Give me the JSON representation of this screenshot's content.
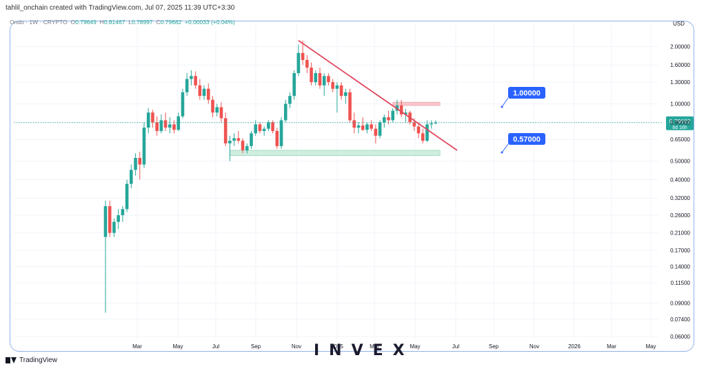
{
  "header": {
    "attribution": "tahlil_onchain created with TradingView.com, Jul 07, 2025 11:39 UTC+3:30"
  },
  "legend": {
    "symbol": "Ondo · 1W · CRYPTO",
    "open_label": "O",
    "open": "0.79649",
    "high_label": "H",
    "high": "0.81467",
    "low_label": "L",
    "low": "0.78997",
    "close_label": "C",
    "close": "0.79682",
    "change": "+0.00033 (+0.04%)"
  },
  "currency": "USD",
  "price_tag": {
    "price": "0.79682",
    "countdown": "6d 16h"
  },
  "annotations": {
    "resistance_label": "1.00000",
    "support_label": "0.57000"
  },
  "footer": {
    "brand": "TradingView"
  },
  "watermark": "INVEX",
  "colors": {
    "up": "#26a69a",
    "down": "#ef5350",
    "trendline": "#e0475d",
    "label_bg": "#2962ff",
    "support_zone": "#bfe8d6",
    "resistance_zone": "#f7c6cd"
  },
  "chart_data": {
    "type": "candlestick",
    "y_scale": "log",
    "ylim": [
      0.058,
      2.6
    ],
    "y_ticks": [
      "2.00000",
      "1.60000",
      "1.30000",
      "1.00000",
      "0.80000",
      "0.65000",
      "0.50000",
      "0.40000",
      "0.32000",
      "0.26000",
      "0.21000",
      "0.17000",
      "0.14000",
      "0.11500",
      "0.09000",
      "0.07400",
      "0.06000"
    ],
    "x_ticks": [
      "Mar",
      "May",
      "Jul",
      "Sep",
      "Nov",
      "2025",
      "Mar",
      "May",
      "Jul",
      "Sep",
      "Nov",
      "2026",
      "Mar",
      "May"
    ],
    "candles": [
      {
        "o": 0.2,
        "h": 0.31,
        "l": 0.08,
        "c": 0.29
      },
      {
        "o": 0.29,
        "h": 0.31,
        "l": 0.2,
        "c": 0.21
      },
      {
        "o": 0.21,
        "h": 0.25,
        "l": 0.2,
        "c": 0.24
      },
      {
        "o": 0.24,
        "h": 0.28,
        "l": 0.22,
        "c": 0.26
      },
      {
        "o": 0.26,
        "h": 0.29,
        "l": 0.24,
        "c": 0.28
      },
      {
        "o": 0.28,
        "h": 0.4,
        "l": 0.27,
        "c": 0.38
      },
      {
        "o": 0.38,
        "h": 0.48,
        "l": 0.36,
        "c": 0.45
      },
      {
        "o": 0.45,
        "h": 0.55,
        "l": 0.42,
        "c": 0.52
      },
      {
        "o": 0.52,
        "h": 0.56,
        "l": 0.4,
        "c": 0.48
      },
      {
        "o": 0.48,
        "h": 0.8,
        "l": 0.46,
        "c": 0.75
      },
      {
        "o": 0.75,
        "h": 0.95,
        "l": 0.7,
        "c": 0.9
      },
      {
        "o": 0.9,
        "h": 0.93,
        "l": 0.75,
        "c": 0.8
      },
      {
        "o": 0.8,
        "h": 0.86,
        "l": 0.68,
        "c": 0.72
      },
      {
        "o": 0.72,
        "h": 0.88,
        "l": 0.7,
        "c": 0.82
      },
      {
        "o": 0.82,
        "h": 0.9,
        "l": 0.72,
        "c": 0.75
      },
      {
        "o": 0.75,
        "h": 0.85,
        "l": 0.7,
        "c": 0.78
      },
      {
        "o": 0.78,
        "h": 0.82,
        "l": 0.7,
        "c": 0.73
      },
      {
        "o": 0.73,
        "h": 0.9,
        "l": 0.72,
        "c": 0.86
      },
      {
        "o": 0.86,
        "h": 1.2,
        "l": 0.84,
        "c": 1.15
      },
      {
        "o": 1.15,
        "h": 1.45,
        "l": 1.1,
        "c": 1.35
      },
      {
        "o": 1.35,
        "h": 1.5,
        "l": 1.25,
        "c": 1.4
      },
      {
        "o": 1.4,
        "h": 1.48,
        "l": 1.2,
        "c": 1.25
      },
      {
        "o": 1.25,
        "h": 1.35,
        "l": 1.05,
        "c": 1.1
      },
      {
        "o": 1.1,
        "h": 1.25,
        "l": 1.05,
        "c": 1.2
      },
      {
        "o": 1.2,
        "h": 1.28,
        "l": 1.0,
        "c": 1.05
      },
      {
        "o": 1.05,
        "h": 1.1,
        "l": 0.85,
        "c": 0.9
      },
      {
        "o": 0.9,
        "h": 1.0,
        "l": 0.86,
        "c": 0.96
      },
      {
        "o": 0.96,
        "h": 1.02,
        "l": 0.8,
        "c": 0.84
      },
      {
        "o": 0.84,
        "h": 0.9,
        "l": 0.6,
        "c": 0.62
      },
      {
        "o": 0.62,
        "h": 0.68,
        "l": 0.5,
        "c": 0.64
      },
      {
        "o": 0.64,
        "h": 0.7,
        "l": 0.6,
        "c": 0.66
      },
      {
        "o": 0.66,
        "h": 0.72,
        "l": 0.62,
        "c": 0.64
      },
      {
        "o": 0.64,
        "h": 0.66,
        "l": 0.55,
        "c": 0.57
      },
      {
        "o": 0.57,
        "h": 0.62,
        "l": 0.55,
        "c": 0.6
      },
      {
        "o": 0.6,
        "h": 0.72,
        "l": 0.58,
        "c": 0.7
      },
      {
        "o": 0.7,
        "h": 0.82,
        "l": 0.68,
        "c": 0.78
      },
      {
        "o": 0.78,
        "h": 0.8,
        "l": 0.7,
        "c": 0.72
      },
      {
        "o": 0.72,
        "h": 0.76,
        "l": 0.68,
        "c": 0.74
      },
      {
        "o": 0.74,
        "h": 0.82,
        "l": 0.72,
        "c": 0.8
      },
      {
        "o": 0.8,
        "h": 0.82,
        "l": 0.7,
        "c": 0.72
      },
      {
        "o": 0.72,
        "h": 0.75,
        "l": 0.58,
        "c": 0.6
      },
      {
        "o": 0.6,
        "h": 0.85,
        "l": 0.58,
        "c": 0.82
      },
      {
        "o": 0.82,
        "h": 1.05,
        "l": 0.8,
        "c": 1.0
      },
      {
        "o": 1.0,
        "h": 1.15,
        "l": 0.95,
        "c": 1.1
      },
      {
        "o": 1.1,
        "h": 1.5,
        "l": 1.05,
        "c": 1.45
      },
      {
        "o": 1.45,
        "h": 2.05,
        "l": 1.4,
        "c": 1.85
      },
      {
        "o": 1.85,
        "h": 2.15,
        "l": 1.6,
        "c": 1.7
      },
      {
        "o": 1.7,
        "h": 1.8,
        "l": 1.45,
        "c": 1.55
      },
      {
        "o": 1.55,
        "h": 1.65,
        "l": 1.25,
        "c": 1.3
      },
      {
        "o": 1.3,
        "h": 1.5,
        "l": 1.25,
        "c": 1.45
      },
      {
        "o": 1.45,
        "h": 1.55,
        "l": 1.2,
        "c": 1.25
      },
      {
        "o": 1.25,
        "h": 1.45,
        "l": 1.1,
        "c": 1.4
      },
      {
        "o": 1.4,
        "h": 1.45,
        "l": 1.25,
        "c": 1.3
      },
      {
        "o": 1.3,
        "h": 1.35,
        "l": 1.15,
        "c": 1.2
      },
      {
        "o": 1.2,
        "h": 1.3,
        "l": 0.9,
        "c": 1.25
      },
      {
        "o": 1.25,
        "h": 1.3,
        "l": 1.05,
        "c": 1.1
      },
      {
        "o": 1.1,
        "h": 1.2,
        "l": 1.0,
        "c": 1.15
      },
      {
        "o": 1.15,
        "h": 1.2,
        "l": 0.8,
        "c": 0.82
      },
      {
        "o": 0.82,
        "h": 0.9,
        "l": 0.7,
        "c": 0.75
      },
      {
        "o": 0.75,
        "h": 0.8,
        "l": 0.7,
        "c": 0.77
      },
      {
        "o": 0.77,
        "h": 0.85,
        "l": 0.72,
        "c": 0.73
      },
      {
        "o": 0.73,
        "h": 0.8,
        "l": 0.7,
        "c": 0.78
      },
      {
        "o": 0.78,
        "h": 0.82,
        "l": 0.72,
        "c": 0.74
      },
      {
        "o": 0.74,
        "h": 0.78,
        "l": 0.62,
        "c": 0.68
      },
      {
        "o": 0.68,
        "h": 0.82,
        "l": 0.66,
        "c": 0.8
      },
      {
        "o": 0.8,
        "h": 0.88,
        "l": 0.75,
        "c": 0.85
      },
      {
        "o": 0.85,
        "h": 0.92,
        "l": 0.78,
        "c": 0.82
      },
      {
        "o": 0.82,
        "h": 0.95,
        "l": 0.8,
        "c": 0.92
      },
      {
        "o": 0.92,
        "h": 1.05,
        "l": 0.88,
        "c": 0.98
      },
      {
        "o": 0.98,
        "h": 1.05,
        "l": 0.85,
        "c": 0.88
      },
      {
        "o": 0.88,
        "h": 0.94,
        "l": 0.8,
        "c": 0.9
      },
      {
        "o": 0.9,
        "h": 0.92,
        "l": 0.78,
        "c": 0.8
      },
      {
        "o": 0.8,
        "h": 0.84,
        "l": 0.72,
        "c": 0.76
      },
      {
        "o": 0.76,
        "h": 0.8,
        "l": 0.66,
        "c": 0.7
      },
      {
        "o": 0.7,
        "h": 0.74,
        "l": 0.62,
        "c": 0.64
      },
      {
        "o": 0.64,
        "h": 0.82,
        "l": 0.63,
        "c": 0.78
      },
      {
        "o": 0.78,
        "h": 0.82,
        "l": 0.74,
        "c": 0.79
      },
      {
        "o": 0.79,
        "h": 0.82,
        "l": 0.78,
        "c": 0.797
      }
    ],
    "trendline": {
      "from_candle": 45,
      "from_price": 2.15,
      "to_candle": 82,
      "to_price": 0.57
    },
    "last_price": 0.79682,
    "support_zone": {
      "from_candle": 29,
      "to_candle": 78,
      "low": 0.535,
      "high": 0.57
    },
    "resistance_zone": {
      "from_candle": 67,
      "to_candle": 78,
      "low": 0.98,
      "high": 1.02
    }
  }
}
